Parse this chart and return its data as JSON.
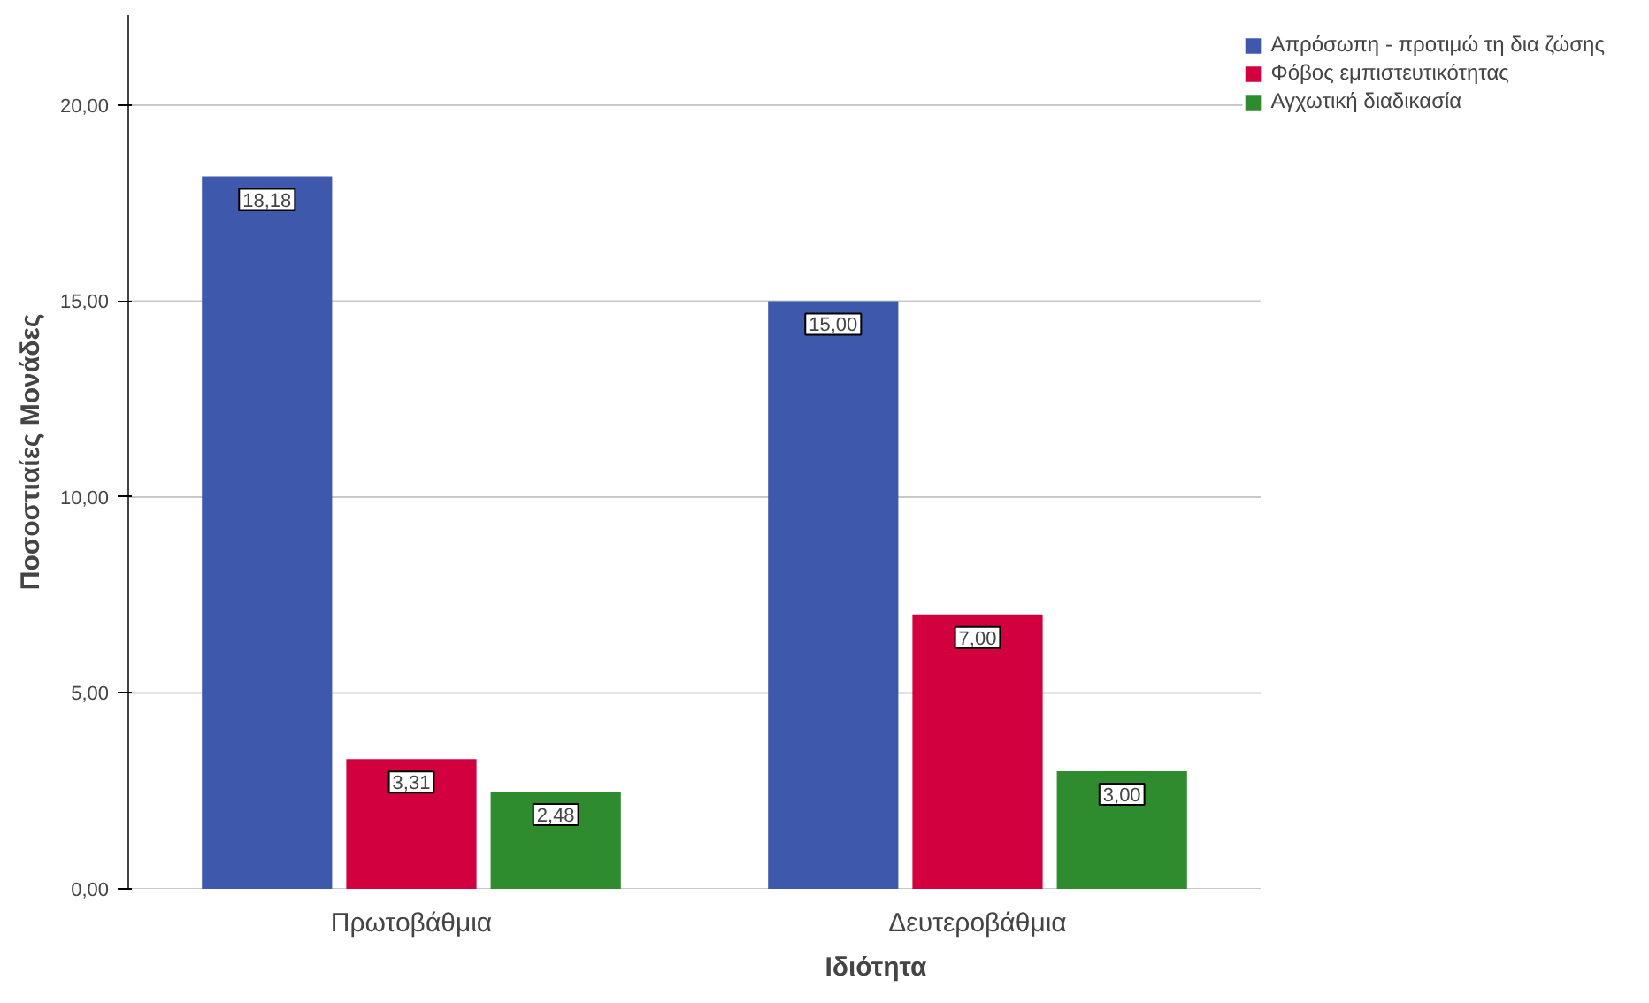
{
  "chart_data": {
    "type": "bar",
    "xlabel": "Ιδιότητα",
    "ylabel": "Ποσοστιαίες Μονάδες",
    "categories": [
      "Πρωτοβάθμια",
      "Δευτεροβάθμια"
    ],
    "series": [
      {
        "name": "Απρόσωπη - προτιμώ τη δια ζώσης",
        "color": "#3e58ac",
        "values": [
          18.18,
          15.0
        ],
        "value_labels": [
          "18,18",
          "15,00"
        ]
      },
      {
        "name": "Φόβος εμπιστευτικότητας",
        "color": "#d3003f",
        "values": [
          3.31,
          7.0
        ],
        "value_labels": [
          "3,31",
          "7,00"
        ]
      },
      {
        "name": "Αγχωτική διαδικασία",
        "color": "#2e8b2e",
        "values": [
          2.48,
          3.0
        ],
        "value_labels": [
          "2,48",
          "3,00"
        ]
      }
    ],
    "ylim": [
      0,
      22.3
    ],
    "yticks": [
      {
        "value": 0,
        "label": "0,00"
      },
      {
        "value": 5,
        "label": "5,00"
      },
      {
        "value": 10,
        "label": "10,00"
      },
      {
        "value": 15,
        "label": "15,00"
      },
      {
        "value": 20,
        "label": "20,00"
      }
    ],
    "grid": "y",
    "legend": "top right",
    "data_labels": true
  }
}
